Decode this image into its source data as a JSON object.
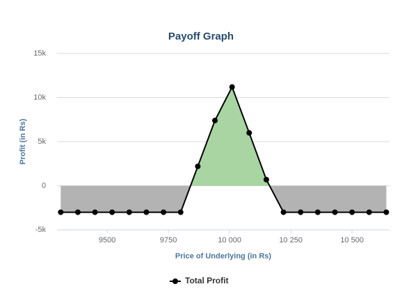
{
  "chart_data": {
    "type": "line",
    "title": "Payoff Graph",
    "x_label": "Price of Underlying (in Rs)",
    "y_label": "Profit (in Rs)",
    "x": [
      9310,
      9380,
      9450,
      9520,
      9590,
      9660,
      9730,
      9800,
      9870,
      9940,
      10010,
      10080,
      10150,
      10220,
      10290,
      10360,
      10430,
      10500,
      10570,
      10640
    ],
    "series": [
      {
        "name": "Total Profit",
        "color": "#000000",
        "values": [
          -3000,
          -3000,
          -3000,
          -3000,
          -3000,
          -3000,
          -3000,
          -3000,
          2200,
          7400,
          11200,
          6000,
          700,
          -3000,
          -3000,
          -3000,
          -3000,
          -3000,
          -3000,
          -3000
        ]
      }
    ],
    "positive_color": "#a8d5a2",
    "negative_color": "#b3b3b3",
    "xlim": [
      9295,
      10653
    ],
    "ylim": [
      -5000,
      15000
    ],
    "xticks": [
      9500,
      9750,
      {
        "value": 10000,
        "label": "10 000"
      },
      {
        "value": 10250,
        "label": "10 250"
      },
      {
        "value": 10500,
        "label": "10 500"
      }
    ],
    "yticks": [
      {
        "value": -5000,
        "label": "-5k"
      },
      0,
      {
        "value": 5000,
        "label": "5k"
      },
      {
        "value": 10000,
        "label": "10k"
      },
      {
        "value": 15000,
        "label": "15k"
      }
    ],
    "grid": true,
    "legend": "bottom"
  }
}
